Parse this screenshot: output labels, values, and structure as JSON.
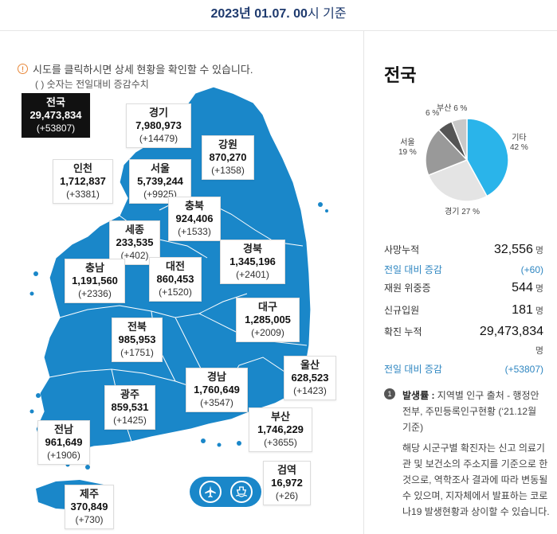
{
  "header": {
    "date_bold": "2023년 01.07. 00",
    "date_rest": "시 기준"
  },
  "info": {
    "icon": "info-icon",
    "text": "시도를 클릭하시면 상세 현황을 확인할 수 있습니다.",
    "subtext": "( ) 숫자는 전일대비 증감수치"
  },
  "colors": {
    "map_fill": "#1a87c9",
    "pie_other": "#2ab4ea",
    "pie_gyeonggi": "#e4e4e4",
    "pie_seoul": "#999999",
    "pie_busan": "#555555",
    "pie_incheon": "#c8c8c8"
  },
  "regions": {
    "national": {
      "name": "전국",
      "value": "29,473,834",
      "diff": "(+53807)"
    },
    "gyeonggi": {
      "name": "경기",
      "value": "7,980,973",
      "diff": "(+14479)"
    },
    "gangwon": {
      "name": "강원",
      "value": "870,270",
      "diff": "(+1358)"
    },
    "incheon": {
      "name": "인천",
      "value": "1,712,837",
      "diff": "(+3381)"
    },
    "seoul": {
      "name": "서울",
      "value": "5,739,244",
      "diff": "(+9925)"
    },
    "chungbuk": {
      "name": "충북",
      "value": "924,406",
      "diff": "(+1533)"
    },
    "sejong": {
      "name": "세종",
      "value": "233,535",
      "diff": "(+402)"
    },
    "chungnam": {
      "name": "충남",
      "value": "1,191,560",
      "diff": "(+2336)"
    },
    "daejeon": {
      "name": "대전",
      "value": "860,453",
      "diff": "(+1520)"
    },
    "gyeongbuk": {
      "name": "경북",
      "value": "1,345,196",
      "diff": "(+2401)"
    },
    "daegu": {
      "name": "대구",
      "value": "1,285,005",
      "diff": "(+2009)"
    },
    "jeonbuk": {
      "name": "전북",
      "value": "985,953",
      "diff": "(+1751)"
    },
    "ulsan": {
      "name": "울산",
      "value": "628,523",
      "diff": "(+1423)"
    },
    "gyeongnam": {
      "name": "경남",
      "value": "1,760,649",
      "diff": "(+3547)"
    },
    "gwangju": {
      "name": "광주",
      "value": "859,531",
      "diff": "(+1425)"
    },
    "busan": {
      "name": "부산",
      "value": "1,746,229",
      "diff": "(+3655)"
    },
    "jeonnam": {
      "name": "전남",
      "value": "961,649",
      "diff": "(+1906)"
    },
    "quarantine": {
      "name": "검역",
      "value": "16,972",
      "diff": "(+26)"
    },
    "jeju": {
      "name": "제주",
      "value": "370,849",
      "diff": "(+730)"
    }
  },
  "transport_icons": [
    "airplane-icon",
    "ship-icon"
  ],
  "panel": {
    "title": "전국",
    "pie": {
      "slices": [
        {
          "label": "기타",
          "percent": "42 %",
          "share": 42
        },
        {
          "label": "경기",
          "percent": "27 %",
          "share": 27
        },
        {
          "label": "서울",
          "percent": "19 %",
          "share": 19
        },
        {
          "label": "부산",
          "percent": "6 %",
          "share": 6
        },
        {
          "label": "",
          "percent": "6 %",
          "share": 6
        }
      ]
    },
    "stats": {
      "deaths_label": "사망누적",
      "deaths_value": "32,556",
      "deaths_unit": "명",
      "deaths_diff_label": "전일 대비 증감",
      "deaths_diff_value": "(+60)",
      "critical_label": "재원 위중증",
      "critical_value": "544",
      "critical_unit": "명",
      "admitted_label": "신규입원",
      "admitted_value": "181",
      "admitted_unit": "명",
      "confirmed_label": "확진 누적",
      "confirmed_value": "29,473,834",
      "confirmed_unit": "명",
      "confirmed_diff_label": "전일 대비 증감",
      "confirmed_diff_value": "(+53807)"
    },
    "note": {
      "num": "1",
      "title": "발생률 :",
      "text": " 지역별 인구 출처 - 행정안전부, 주민등록인구현황 (‘21.12월 기준)",
      "body": "해당 시군구별 확진자는 신고 의료기관 및 보건소의 주소지를 기준으로 한 것으로, 역학조사 결과에 따라 변동될 수 있으며, 지자체에서 발표하는 코로나19 발생현황과 상이할 수 있습니다."
    }
  }
}
